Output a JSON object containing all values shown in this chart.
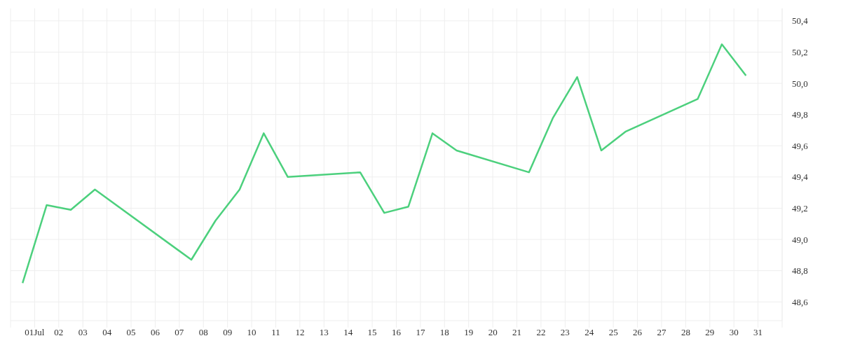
{
  "chart_data": {
    "type": "line",
    "x": [
      0.5,
      1.5,
      2.5,
      3.5,
      7.5,
      8.5,
      9.5,
      10.5,
      11.5,
      14.5,
      15.5,
      16.5,
      17.5,
      18.5,
      21.5,
      22.5,
      23.5,
      24.5,
      25.5,
      28.5,
      29.5,
      30.5
    ],
    "series": [
      {
        "color": "#4cd07d",
        "values": [
          48.72,
          49.22,
          49.19,
          49.32,
          48.87,
          49.12,
          49.32,
          49.68,
          49.4,
          49.43,
          49.17,
          49.21,
          49.68,
          49.57,
          49.43,
          49.78,
          50.04,
          49.57,
          49.69,
          49.9,
          50.25,
          50.05
        ]
      }
    ],
    "xlim": [
      0,
      32
    ],
    "xticks": [
      {
        "value": 0,
        "label": null
      },
      {
        "value": 1,
        "label": "01Jul"
      },
      {
        "value": 2,
        "label": "02"
      },
      {
        "value": 3,
        "label": "03"
      },
      {
        "value": 4,
        "label": "04"
      },
      {
        "value": 5,
        "label": "05"
      },
      {
        "value": 6,
        "label": "06"
      },
      {
        "value": 7,
        "label": "07"
      },
      {
        "value": 8,
        "label": "08"
      },
      {
        "value": 9,
        "label": "09"
      },
      {
        "value": 10,
        "label": "10"
      },
      {
        "value": 11,
        "label": "11"
      },
      {
        "value": 12,
        "label": "12"
      },
      {
        "value": 13,
        "label": "13"
      },
      {
        "value": 14,
        "label": "14"
      },
      {
        "value": 15,
        "label": "15"
      },
      {
        "value": 16,
        "label": "16"
      },
      {
        "value": 17,
        "label": "17"
      },
      {
        "value": 18,
        "label": "18"
      },
      {
        "value": 19,
        "label": "19"
      },
      {
        "value": 20,
        "label": "20"
      },
      {
        "value": 21,
        "label": "21"
      },
      {
        "value": 22,
        "label": "22"
      },
      {
        "value": 23,
        "label": "23"
      },
      {
        "value": 24,
        "label": "24"
      },
      {
        "value": 25,
        "label": "25"
      },
      {
        "value": 26,
        "label": "26"
      },
      {
        "value": 27,
        "label": "27"
      },
      {
        "value": 28,
        "label": "28"
      },
      {
        "value": 29,
        "label": "29"
      },
      {
        "value": 30,
        "label": "30"
      },
      {
        "value": 31,
        "label": "31"
      },
      {
        "value": 32,
        "label": null
      }
    ],
    "ylim": [
      48.48,
      50.48
    ],
    "yticks": [
      {
        "value": 48.6,
        "label": "48,6"
      },
      {
        "value": 48.8,
        "label": "48,8"
      },
      {
        "value": 49.0,
        "label": "49,0"
      },
      {
        "value": 49.2,
        "label": "49,2"
      },
      {
        "value": 49.4,
        "label": "49,4"
      },
      {
        "value": 49.6,
        "label": "49,6"
      },
      {
        "value": 49.8,
        "label": "49,8"
      },
      {
        "value": 50.0,
        "label": "50,0"
      },
      {
        "value": 50.2,
        "label": "50,2"
      },
      {
        "value": 50.4,
        "label": "50,4"
      }
    ],
    "grid": true,
    "legend": false,
    "marker": "none",
    "line_style": "solid"
  }
}
